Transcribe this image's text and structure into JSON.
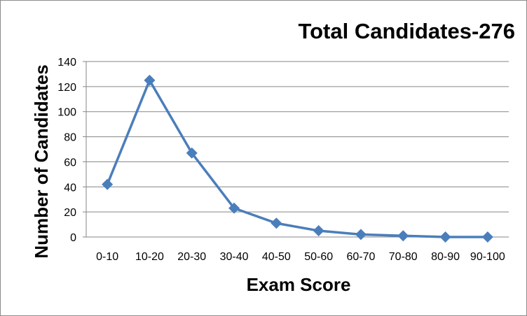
{
  "chart_data": {
    "type": "line",
    "title": "Total Candidates-276",
    "xlabel": "Exam Score",
    "ylabel": "Number of Candidates",
    "categories": [
      "0-10",
      "10-20",
      "20-30",
      "30-40",
      "40-50",
      "50-60",
      "60-70",
      "70-80",
      "80-90",
      "90-100"
    ],
    "series": [
      {
        "values": [
          42,
          125,
          67,
          23,
          11,
          5,
          2,
          1,
          0,
          0
        ]
      }
    ],
    "ylim": [
      0,
      140
    ],
    "yticks": [
      0,
      20,
      40,
      60,
      80,
      100,
      120,
      140
    ],
    "grid": true,
    "legend": "none",
    "colors": {
      "line": "#4a7ebb",
      "marker": "#4a7ebb",
      "grid": "#868686"
    }
  }
}
